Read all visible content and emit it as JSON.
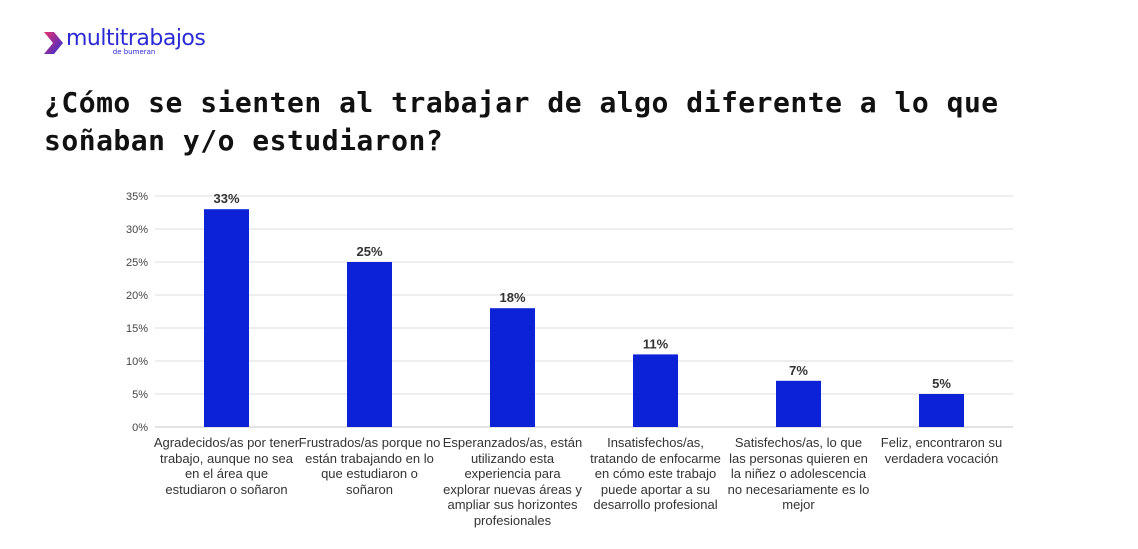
{
  "logo": {
    "word": "multitrabajos",
    "sub": "de bumeran",
    "colors": [
      "#2b2bd6",
      "#e8336d"
    ]
  },
  "chart_data": {
    "type": "bar",
    "title": "¿Cómo se sienten al trabajar de algo diferente a lo que soñaban y/o estudiaron?",
    "xlabel": "",
    "ylabel": "",
    "ylim": [
      0,
      35
    ],
    "yticks": [
      0,
      5,
      10,
      15,
      20,
      25,
      30,
      35
    ],
    "ytick_labels": [
      "0%",
      "5%",
      "10%",
      "15%",
      "20%",
      "25%",
      "30%",
      "35%"
    ],
    "grid": true,
    "legend": "none",
    "bar_color": "#0b22d6",
    "categories": [
      "Agradecidos/as por tener trabajo, aunque no sea en el área que estudiaron o soñaron",
      "Frustrados/as porque no están trabajando en lo que estudiaron o soñaron",
      "Esperanzados/as, están utilizando esta experiencia para explorar nuevas áreas y ampliar sus horizontes profesionales",
      "Insatisfechos/as, tratando de enfocarme en cómo este trabajo puede aportar a su desarrollo profesional",
      "Satisfechos/as, lo que las personas quieren en la niñez o adolescencia no necesariamente es lo mejor",
      "Feliz, encontraron su verdadera vocación"
    ],
    "values": [
      33,
      25,
      18,
      11,
      7,
      5
    ],
    "data_labels": [
      "33%",
      "25%",
      "18%",
      "11%",
      "7%",
      "5%"
    ]
  }
}
